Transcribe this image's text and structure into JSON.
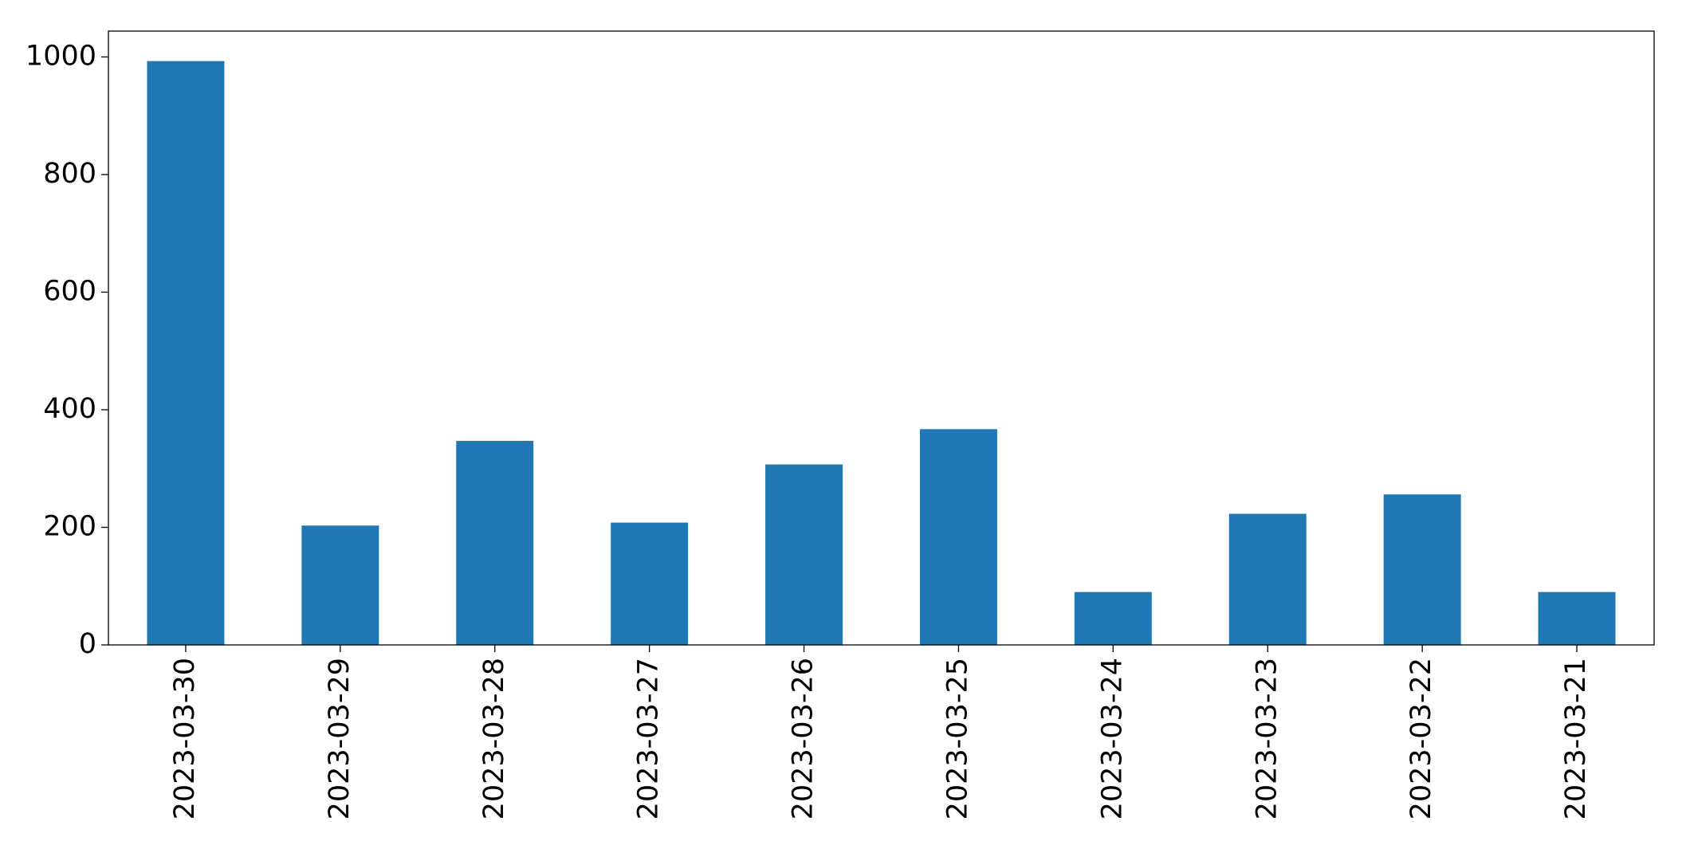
{
  "chart_data": {
    "type": "bar",
    "categories": [
      "2023-03-30",
      "2023-03-29",
      "2023-03-28",
      "2023-03-27",
      "2023-03-26",
      "2023-03-25",
      "2023-03-24",
      "2023-03-23",
      "2023-03-22",
      "2023-03-21"
    ],
    "values": [
      993,
      203,
      347,
      208,
      307,
      367,
      90,
      223,
      256,
      90
    ],
    "color": "#1f77b4",
    "ylim": [
      0,
      1044
    ],
    "yticks": [
      0,
      200,
      400,
      600,
      800,
      1000
    ],
    "grid": false
  }
}
